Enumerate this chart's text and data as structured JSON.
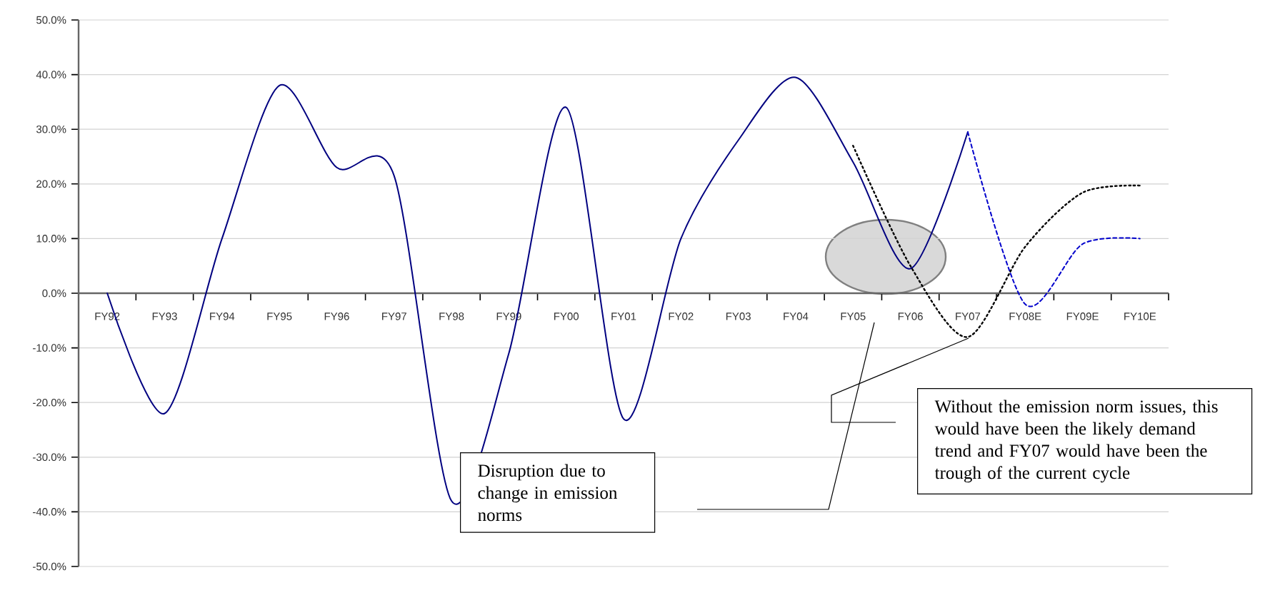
{
  "chart_data": {
    "type": "line",
    "categories": [
      "FY92",
      "FY93",
      "FY94",
      "FY95",
      "FY96",
      "FY97",
      "FY98",
      "FY99",
      "FY00",
      "FY01",
      "FY02",
      "FY03",
      "FY04",
      "FY05",
      "FY06",
      "FY07",
      "FY08E",
      "FY09E",
      "FY10E"
    ],
    "series": [
      {
        "type": "line",
        "color": "#000080",
        "line_style": "solid",
        "values": [
          0,
          -22,
          10,
          38,
          23,
          21.5,
          -38,
          -11,
          34,
          -23,
          10,
          28,
          39.5,
          24,
          4.5,
          29.5,
          null,
          null,
          null
        ]
      },
      {
        "type": "line",
        "color": "#0000cc",
        "line_style": "dashed",
        "values": [
          null,
          null,
          null,
          null,
          null,
          null,
          null,
          null,
          null,
          null,
          null,
          null,
          null,
          null,
          null,
          29.5,
          -2,
          9,
          10
        ]
      },
      {
        "type": "line",
        "color": "#000000",
        "line_style": "dotted",
        "values": [
          null,
          null,
          null,
          null,
          null,
          null,
          null,
          null,
          null,
          null,
          null,
          null,
          null,
          27,
          5,
          -8,
          8.5,
          18.4,
          19.7
        ]
      }
    ],
    "ylim": [
      -50,
      50
    ],
    "yticks": [
      {
        "value": -50,
        "label": "-50.0%"
      },
      {
        "value": -40,
        "label": "-40.0%"
      },
      {
        "value": -30,
        "label": "-30.0%"
      },
      {
        "value": -20,
        "label": "-20.0%"
      },
      {
        "value": -10,
        "label": "-10.0%"
      },
      {
        "value": 0,
        "label": "0.0%"
      },
      {
        "value": 10,
        "label": "10.0%"
      },
      {
        "value": 20,
        "label": "20.0%"
      },
      {
        "value": 30,
        "label": "30.0%"
      },
      {
        "value": 40,
        "label": "40.0%"
      },
      {
        "value": 50,
        "label": "50.0%"
      }
    ],
    "grid": "y",
    "marker": "none",
    "annotations": [
      "Disruption due to change in emission norms",
      "Without the emission norm issues, this would have been the likely demand trend and FY07 would have been the trough of the current cycle"
    ]
  }
}
